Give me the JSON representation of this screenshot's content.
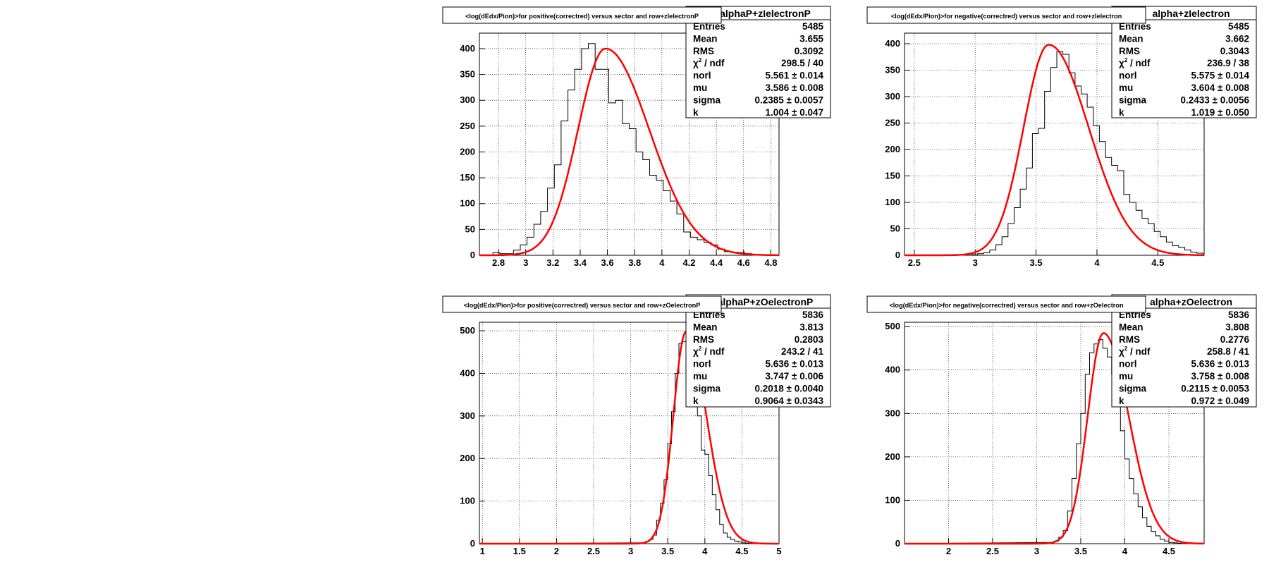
{
  "chart_data": [
    {
      "type": "bar",
      "title": "<log(dEdx/Pion)>for positive(correctred) versus sector and row+zIelectronP",
      "stats_header": "alphaP+zIelectronP",
      "stats": [
        [
          "Entries",
          "5485"
        ],
        [
          "Mean",
          "3.655"
        ],
        [
          "RMS",
          "0.3092"
        ],
        [
          "chi2 / ndf",
          "298.5 / 40"
        ],
        [
          "norl",
          "5.561 ± 0.014"
        ],
        [
          "mu",
          "3.586 ± 0.008"
        ],
        [
          "sigma",
          "0.2385 ± 0.0057"
        ],
        [
          "k",
          "1.004 ± 0.047"
        ]
      ],
      "xlim": [
        2.66,
        4.86
      ],
      "ylim": [
        0,
        430
      ],
      "xticks": [
        2.8,
        3,
        3.2,
        3.4,
        3.6,
        3.8,
        4,
        4.2,
        4.4,
        4.6,
        4.8
      ],
      "xtick_labels": [
        "2.8",
        "3",
        "3.2",
        "3.4",
        "3.6",
        "3.8",
        "4",
        "4.2",
        "4.4",
        "4.6",
        "4.8"
      ],
      "yticks": [
        0,
        50,
        100,
        150,
        200,
        250,
        300,
        350,
        400
      ],
      "ytick_labels": [
        "0",
        "50",
        "100",
        "150",
        "200",
        "250",
        "300",
        "350",
        "400"
      ],
      "grid": true,
      "hist": {
        "x0": 2.66,
        "bin_width": 0.05,
        "values": [
          0,
          0,
          5,
          3,
          3,
          10,
          20,
          35,
          60,
          85,
          130,
          175,
          260,
          320,
          360,
          400,
          410,
          360,
          360,
          295,
          300,
          255,
          245,
          200,
          185,
          155,
          145,
          125,
          105,
          80,
          45,
          35,
          30,
          25,
          20,
          12,
          7,
          6,
          5,
          3,
          2,
          1,
          0,
          0
        ]
      },
      "fit": {
        "norl": 5.561,
        "mu": 3.586,
        "sigma": 0.2385,
        "k": 1.004,
        "peak": 400
      }
    },
    {
      "type": "bar",
      "title": "<log(dEdx/Pion)>for negative(correctred) versus sector and row+zIelectron",
      "stats_header": "alpha+zIelectron",
      "stats": [
        [
          "Entries",
          "5485"
        ],
        [
          "Mean",
          "3.662"
        ],
        [
          "RMS",
          "0.3043"
        ],
        [
          "chi2 / ndf",
          "236.9 / 38"
        ],
        [
          "norl",
          "5.575 ± 0.014"
        ],
        [
          "mu",
          "3.604 ± 0.008"
        ],
        [
          "sigma",
          "0.2433 ± 0.0056"
        ],
        [
          "k",
          "1.019 ± 0.050"
        ]
      ],
      "xlim": [
        2.42,
        4.88
      ],
      "ylim": [
        0,
        420
      ],
      "xticks": [
        2.5,
        3,
        3.5,
        4,
        4.5
      ],
      "xtick_labels": [
        "2.5",
        "3",
        "3.5",
        "4",
        "4.5"
      ],
      "yticks": [
        0,
        50,
        100,
        150,
        200,
        250,
        300,
        350,
        400
      ],
      "ytick_labels": [
        "0",
        "50",
        "100",
        "150",
        "200",
        "250",
        "300",
        "350",
        "400"
      ],
      "grid": true,
      "hist": {
        "x0": 2.42,
        "bin_width": 0.05,
        "values": [
          0,
          0,
          0,
          0,
          0,
          0,
          0,
          0,
          0,
          0,
          0,
          1,
          3,
          5,
          10,
          20,
          35,
          60,
          90,
          125,
          165,
          230,
          240,
          310,
          355,
          385,
          380,
          345,
          320,
          305,
          280,
          245,
          215,
          185,
          170,
          160,
          115,
          100,
          85,
          70,
          60,
          45,
          35,
          25,
          18,
          15,
          10,
          6,
          4,
          0
        ]
      },
      "fit": {
        "norl": 5.575,
        "mu": 3.604,
        "sigma": 0.2433,
        "k": 1.019,
        "peak": 398
      }
    },
    {
      "type": "bar",
      "title": "<log(dEdx/Pion)>for positive(correctred) versus sector and row+zOelectronP",
      "stats_header": "alphaP+zOelectronP",
      "stats": [
        [
          "Entries",
          "5836"
        ],
        [
          "Mean",
          "3.813"
        ],
        [
          "RMS",
          "0.2803"
        ],
        [
          "chi2 / ndf",
          "243.2 / 41"
        ],
        [
          "norl",
          "5.636 ± 0.013"
        ],
        [
          "mu",
          "3.747 ± 0.006"
        ],
        [
          "sigma",
          "0.2018 ± 0.0040"
        ],
        [
          "k",
          "0.9064 ± 0.0343"
        ]
      ],
      "xlim": [
        0.96,
        5.0
      ],
      "ylim": [
        0,
        520
      ],
      "xticks": [
        1,
        1.5,
        2,
        2.5,
        3,
        3.5,
        4,
        4.5,
        5
      ],
      "xtick_labels": [
        "1",
        "1.5",
        "2",
        "2.5",
        "3",
        "3.5",
        "4",
        "4.5",
        "5"
      ],
      "yticks": [
        0,
        100,
        200,
        300,
        400,
        500
      ],
      "ytick_labels": [
        "0",
        "100",
        "200",
        "300",
        "400",
        "500"
      ],
      "grid": true,
      "hist": {
        "x0": 3.15,
        "bin_width": 0.05,
        "values": [
          2,
          5,
          10,
          20,
          55,
          95,
          150,
          235,
          310,
          400,
          470,
          475,
          460,
          440,
          410,
          300,
          220,
          210,
          160,
          115,
          80,
          45,
          25,
          15,
          10,
          6,
          4,
          2,
          1
        ]
      },
      "fit": {
        "norl": 5.636,
        "mu": 3.747,
        "sigma": 0.2018,
        "k": 0.9064,
        "peak": 498
      }
    },
    {
      "type": "bar",
      "title": "<log(dEdx/Pion)>for negative(correctred) versus sector and row+zOelectron",
      "stats_header": "alpha+zOelectron",
      "stats": [
        [
          "Entries",
          "5836"
        ],
        [
          "Mean",
          "3.808"
        ],
        [
          "RMS",
          "0.2776"
        ],
        [
          "chi2 / ndf",
          "258.8 / 41"
        ],
        [
          "norl",
          "5.636 ± 0.013"
        ],
        [
          "mu",
          "3.758 ± 0.008"
        ],
        [
          "sigma",
          "0.2115 ± 0.0053"
        ],
        [
          "k",
          "0.972 ± 0.049"
        ]
      ],
      "xlim": [
        1.5,
        4.9
      ],
      "ylim": [
        0,
        510
      ],
      "xticks": [
        2,
        2.5,
        3,
        3.5,
        4,
        4.5
      ],
      "xtick_labels": [
        "2",
        "2.5",
        "3",
        "3.5",
        "4",
        "4.5"
      ],
      "yticks": [
        0,
        100,
        200,
        300,
        400,
        500
      ],
      "ytick_labels": [
        "0",
        "100",
        "200",
        "300",
        "400",
        "500"
      ],
      "grid": true,
      "hist": {
        "x0": 3.15,
        "bin_width": 0.05,
        "values": [
          3,
          6,
          15,
          30,
          75,
          150,
          230,
          300,
          390,
          440,
          460,
          470,
          450,
          430,
          390,
          330,
          260,
          195,
          150,
          115,
          85,
          60,
          40,
          28,
          18,
          10,
          6,
          3,
          2,
          1
        ]
      },
      "fit": {
        "norl": 5.636,
        "mu": 3.758,
        "sigma": 0.2115,
        "k": 0.972,
        "peak": 485
      }
    }
  ],
  "colors": {
    "histogram": "#000000",
    "fit": "#ff0000",
    "grid": "#000000",
    "background": "#ffffff"
  }
}
